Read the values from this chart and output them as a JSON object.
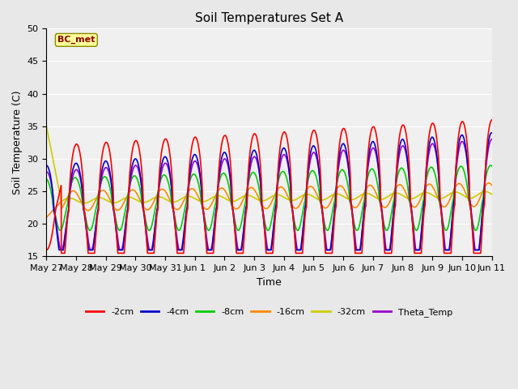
{
  "title": "Soil Temperatures Set A",
  "xlabel": "Time",
  "ylabel": "Soil Temperature (C)",
  "ylim": [
    15,
    50
  ],
  "yticks": [
    15,
    20,
    25,
    30,
    35,
    40,
    45,
    50
  ],
  "series_colors": {
    "-2cm": "#ff0000",
    "-4cm": "#0000cc",
    "-8cm": "#00cc00",
    "-16cm": "#ff8800",
    "-32cm": "#cccc00",
    "Theta_Temp": "#9900cc"
  },
  "legend_label": "BC_met",
  "xticklabels": [
    "May 27",
    "May 28",
    "May 29",
    "May 30",
    "May 31",
    "Jun 1",
    "Jun 2",
    "Jun 3",
    "Jun 4",
    "Jun 5",
    "Jun 6",
    "Jun 7",
    "Jun 8",
    "Jun 9",
    "Jun 10",
    "Jun 11"
  ],
  "background_color": "#e8e8e8",
  "plot_bg_color": "#f0f0f0",
  "annotation_box_color": "#ffff99",
  "annotation_text_color": "#880000",
  "grid_color": "#ffffff",
  "figsize": [
    6.4,
    4.8
  ],
  "dpi": 100
}
